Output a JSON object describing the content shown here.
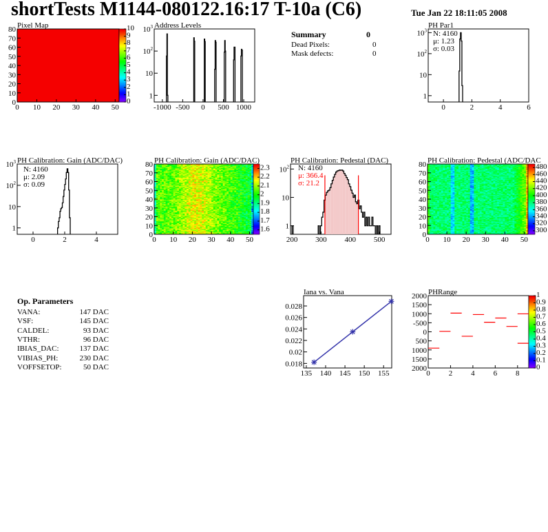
{
  "title": "shortTests M1144-080122.16:17 T-10a (C6)",
  "date": "Tue Jan 22 18:11:05 2008",
  "summary": {
    "heading": "Summary",
    "heading_value": "0",
    "rows": [
      {
        "label": "Dead Pixels:",
        "value": "0"
      },
      {
        "label": "Mask defects:",
        "value": "0"
      }
    ]
  },
  "op_parameters": {
    "heading": "Op. Parameters",
    "rows": [
      {
        "label": "VANA:",
        "value": "147 DAC"
      },
      {
        "label": "VSF:",
        "value": "145 DAC"
      },
      {
        "label": "CALDEL:",
        "value": "93 DAC"
      },
      {
        "label": "VTHR:",
        "value": "96 DAC"
      },
      {
        "label": "IBIAS_DAC:",
        "value": "137 DAC"
      },
      {
        "label": "VIBIAS_PH:",
        "value": "230 DAC"
      },
      {
        "label": "VOFFSETOP:",
        "value": "50 DAC"
      }
    ]
  },
  "colors": {
    "hist_line": "#000000",
    "pedestal_fit": "#ff0000",
    "graph": "#3333aa",
    "segments": "#ff0000"
  },
  "chart_data": [
    {
      "type": "heatmap",
      "title": "Pixel Map",
      "xlim": [
        0,
        52
      ],
      "ylim": [
        0,
        80
      ],
      "xticks": [
        0,
        10,
        20,
        30,
        40,
        50
      ],
      "yticks": [
        0,
        10,
        20,
        30,
        40,
        50,
        60,
        70,
        80
      ],
      "zlim": [
        0,
        10
      ],
      "zticks": [
        0,
        1,
        2,
        3,
        4,
        5,
        6,
        7,
        8,
        9,
        10
      ],
      "uniform_value": 10
    },
    {
      "type": "bar",
      "title": "Address Levels",
      "log_y": true,
      "xlim": [
        -1200,
        1270
      ],
      "ylim": [
        0.5,
        1000
      ],
      "xticks": [
        -1000,
        -500,
        0,
        500,
        1000
      ],
      "yticks": [
        1,
        10,
        100,
        1000
      ],
      "bin_width": 12,
      "bins": [
        [
          -900,
          60
        ],
        [
          -888,
          600
        ],
        [
          -876,
          1
        ],
        [
          -228,
          400
        ],
        [
          -216,
          280
        ],
        [
          30,
          350
        ],
        [
          42,
          270
        ],
        [
          285,
          15
        ],
        [
          297,
          300
        ],
        [
          309,
          250
        ],
        [
          520,
          90
        ],
        [
          532,
          300
        ],
        [
          544,
          100
        ],
        [
          750,
          40
        ],
        [
          762,
          150
        ],
        [
          774,
          150
        ],
        [
          930,
          60
        ],
        [
          942,
          120
        ],
        [
          954,
          110
        ]
      ]
    },
    {
      "type": "bar",
      "title": "PH Par1",
      "log_y": true,
      "xlim": [
        -1.07,
        6
      ],
      "ylim": [
        0.5,
        1500
      ],
      "xticks": [
        0,
        2,
        4,
        6
      ],
      "yticks": [
        1,
        10,
        100,
        1000
      ],
      "bin_width": 0.05,
      "bins": [
        [
          1.1,
          15
        ],
        [
          1.15,
          500
        ],
        [
          1.2,
          1000
        ],
        [
          1.25,
          400
        ],
        [
          1.3,
          3
        ]
      ],
      "stats": [
        {
          "text": "N: 4160",
          "color": "#000"
        },
        {
          "text": "μ: 1.23",
          "color": "#000"
        },
        {
          "text": "σ: 0.03",
          "color": "#000"
        }
      ]
    },
    {
      "type": "bar",
      "title": "PH Calibration: Gain (ADC/DAC)",
      "log_y": true,
      "xlim": [
        -1,
        5.35
      ],
      "ylim": [
        0.5,
        1000
      ],
      "xticks": [
        0,
        2,
        4
      ],
      "yticks": [
        1,
        10,
        100,
        1000
      ],
      "bin_width": 0.05,
      "bins": [
        [
          1.55,
          1
        ],
        [
          1.6,
          2
        ],
        [
          1.65,
          3
        ],
        [
          1.7,
          6
        ],
        [
          1.75,
          8
        ],
        [
          1.8,
          9
        ],
        [
          1.85,
          15
        ],
        [
          1.9,
          30
        ],
        [
          1.95,
          60
        ],
        [
          2.0,
          110
        ],
        [
          2.05,
          200
        ],
        [
          2.1,
          400
        ],
        [
          2.15,
          600
        ],
        [
          2.2,
          400
        ],
        [
          2.25,
          60
        ],
        [
          2.3,
          3
        ]
      ],
      "stats": [
        {
          "text": "N: 4160",
          "color": "#000"
        },
        {
          "text": "μ: 2.09",
          "color": "#000"
        },
        {
          "text": "σ: 0.09",
          "color": "#000"
        }
      ]
    },
    {
      "type": "heatmap",
      "title": "PH Calibration: Gain (ADC/DAC)",
      "xlim": [
        0,
        52
      ],
      "ylim": [
        0,
        80
      ],
      "xticks": [
        0,
        10,
        20,
        30,
        40,
        50
      ],
      "yticks": [
        0,
        10,
        20,
        30,
        40,
        50,
        60,
        70,
        80
      ],
      "zlim": [
        1.55,
        2.35
      ],
      "zticks": [
        1.6,
        1.7,
        1.8,
        1.9,
        2,
        2.1,
        2.2,
        2.3
      ]
    },
    {
      "type": "bar",
      "title": "PH Calibration: Pedestal (DAC)",
      "log_y": true,
      "xlim": [
        195,
        540
      ],
      "ylim": [
        0.5,
        150
      ],
      "xticks": [
        200,
        300,
        400,
        500
      ],
      "yticks": [
        1,
        10,
        100
      ],
      "bin_width": 4,
      "bins": [
        [
          200,
          1
        ],
        [
          290,
          1
        ],
        [
          298,
          1
        ],
        [
          302,
          2
        ],
        [
          306,
          3
        ],
        [
          310,
          8
        ],
        [
          314,
          12
        ],
        [
          318,
          15
        ],
        [
          322,
          17
        ],
        [
          326,
          18
        ],
        [
          330,
          22
        ],
        [
          334,
          30
        ],
        [
          338,
          40
        ],
        [
          342,
          52
        ],
        [
          346,
          65
        ],
        [
          350,
          78
        ],
        [
          354,
          85
        ],
        [
          358,
          88
        ],
        [
          362,
          92
        ],
        [
          366,
          90
        ],
        [
          370,
          92
        ],
        [
          374,
          85
        ],
        [
          378,
          70
        ],
        [
          382,
          60
        ],
        [
          386,
          50
        ],
        [
          390,
          42
        ],
        [
          394,
          30
        ],
        [
          398,
          24
        ],
        [
          402,
          18
        ],
        [
          406,
          14
        ],
        [
          410,
          10
        ],
        [
          414,
          12
        ],
        [
          418,
          7
        ],
        [
          422,
          6
        ],
        [
          426,
          8
        ],
        [
          430,
          4
        ],
        [
          434,
          5
        ],
        [
          438,
          3
        ],
        [
          442,
          2
        ],
        [
          446,
          3
        ],
        [
          450,
          1
        ],
        [
          454,
          2
        ],
        [
          458,
          1
        ],
        [
          462,
          2
        ],
        [
          466,
          1
        ],
        [
          470,
          1
        ],
        [
          474,
          2
        ],
        [
          478,
          1
        ],
        [
          482,
          1
        ],
        [
          490,
          1
        ],
        [
          498,
          1
        ]
      ],
      "fit_range": [
        313,
        428
      ],
      "stats": [
        {
          "text": "N: 4160",
          "color": "#000"
        },
        {
          "text": "μ: 366.4",
          "color": "#ff0000"
        },
        {
          "text": "σ: 21.2",
          "color": "#ff0000"
        }
      ]
    },
    {
      "type": "heatmap",
      "title": "PH Calibration: Pedestal (ADC/DAC",
      "xlim": [
        0,
        52
      ],
      "ylim": [
        0,
        80
      ],
      "xticks": [
        0,
        10,
        20,
        30,
        40,
        50
      ],
      "yticks": [
        0,
        10,
        20,
        30,
        40,
        50,
        60,
        70,
        80
      ],
      "zlim": [
        290,
        490
      ],
      "zticks": [
        300,
        320,
        340,
        360,
        380,
        400,
        420,
        440,
        460,
        480
      ]
    },
    {
      "type": "line",
      "title": "Iana vs. Vana",
      "xlim": [
        134.3,
        157.1
      ],
      "ylim": [
        0.0172,
        0.0298
      ],
      "xticks": [
        135,
        140,
        145,
        150,
        155
      ],
      "yticks": [
        0.018,
        0.02,
        0.022,
        0.024,
        0.026,
        0.028
      ],
      "points": [
        [
          137,
          0.0182
        ],
        [
          147,
          0.0235
        ],
        [
          157,
          0.0288
        ]
      ]
    },
    {
      "type": "heatmap",
      "title": "PHRange",
      "xlim": [
        0,
        9
      ],
      "ylim": [
        -2000,
        2000
      ],
      "xticks": [
        0,
        2,
        4,
        6,
        8
      ],
      "yticks": [
        -2000,
        -1500,
        -1000,
        -500,
        0,
        500,
        1000,
        1500,
        2000
      ],
      "ytick_labels": [
        "2000",
        "1500",
        "1000",
        "500",
        "0",
        "-500",
        "1000",
        "1500",
        "2000"
      ],
      "zlim": [
        0,
        1
      ],
      "zticks": [
        0,
        0.1,
        0.2,
        0.3,
        0.4,
        0.5,
        0.6,
        0.7,
        0.8,
        0.9,
        1
      ],
      "segments": [
        [
          0,
          1,
          -903
        ],
        [
          1,
          2,
          26
        ],
        [
          2,
          3,
          1032
        ],
        [
          3,
          4,
          -245
        ],
        [
          4,
          5,
          955
        ],
        [
          5,
          6,
          529
        ],
        [
          6,
          7,
          761
        ],
        [
          7,
          8,
          297
        ],
        [
          8,
          9,
          993
        ],
        [
          8,
          9,
          -632
        ]
      ]
    }
  ]
}
